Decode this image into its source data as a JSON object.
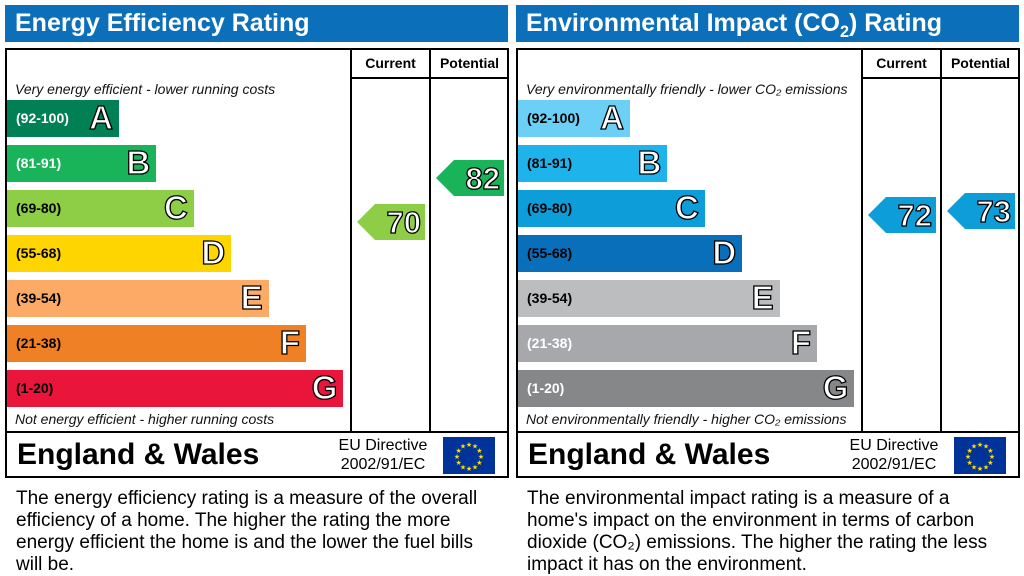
{
  "panels": [
    {
      "title": "Energy Efficiency Rating",
      "title_suffix": "",
      "current_label": "Current",
      "potential_label": "Potential",
      "top_note": "Very energy efficient - lower running costs",
      "bottom_note": "Not energy efficient - higher running costs",
      "region": "England & Wales",
      "directive_line1": "EU Directive",
      "directive_line2": "2002/91/EC",
      "description": "The energy efficiency rating is a measure of the overall efficiency of a home. The higher the rating the more energy efficient the home is and the lower the fuel bills will be."
    },
    {
      "title": "Environmental Impact (CO",
      "title_suffix": ") Rating",
      "current_label": "Current",
      "potential_label": "Potential",
      "top_note": "Very environmentally friendly - lower CO₂ emissions",
      "bottom_note": "Not environmentally friendly - higher CO₂ emissions",
      "region": "England & Wales",
      "directive_line1": "EU Directive",
      "directive_line2": "2002/91/EC",
      "description": "The environmental impact rating is a measure of a home's impact on the environment in terms of carbon dioxide (CO₂) emissions. The higher the rating the less impact it has on the environment."
    }
  ],
  "chart_data": [
    {
      "type": "bar",
      "title": "Energy Efficiency Rating",
      "bands": [
        {
          "letter": "A",
          "range": "(92-100)",
          "color": "#008054",
          "label_color": "#ffffff"
        },
        {
          "letter": "B",
          "range": "(81-91)",
          "color": "#19b459",
          "label_color": "#ffffff"
        },
        {
          "letter": "C",
          "range": "(69-80)",
          "color": "#8dce46",
          "label_color": "#000000"
        },
        {
          "letter": "D",
          "range": "(55-68)",
          "color": "#ffd500",
          "label_color": "#000000"
        },
        {
          "letter": "E",
          "range": "(39-54)",
          "color": "#fcaa65",
          "label_color": "#000000"
        },
        {
          "letter": "F",
          "range": "(21-38)",
          "color": "#ef8023",
          "label_color": "#000000"
        },
        {
          "letter": "G",
          "range": "(1-20)",
          "color": "#e9153b",
          "label_color": "#000000"
        }
      ],
      "current": {
        "value": 70,
        "band": "C",
        "color": "#8dce46"
      },
      "potential": {
        "value": 82,
        "band": "B",
        "color": "#19b459"
      }
    },
    {
      "type": "bar",
      "title": "Environmental Impact (CO2) Rating",
      "bands": [
        {
          "letter": "A",
          "range": "(92-100)",
          "color": "#6ccff6",
          "label_color": "#000000"
        },
        {
          "letter": "B",
          "range": "(81-91)",
          "color": "#1fb3ec",
          "label_color": "#000000"
        },
        {
          "letter": "C",
          "range": "(69-80)",
          "color": "#0d9dd9",
          "label_color": "#000000"
        },
        {
          "letter": "D",
          "range": "(55-68)",
          "color": "#0a6fba",
          "label_color": "#000000"
        },
        {
          "letter": "E",
          "range": "(39-54)",
          "color": "#bbbdbf",
          "label_color": "#000000"
        },
        {
          "letter": "F",
          "range": "(21-38)",
          "color": "#a6a8ab",
          "label_color": "#ffffff"
        },
        {
          "letter": "G",
          "range": "(1-20)",
          "color": "#858789",
          "label_color": "#ffffff"
        }
      ],
      "current": {
        "value": 72,
        "band": "C",
        "color": "#0d9dd9"
      },
      "potential": {
        "value": 73,
        "band": "C",
        "color": "#0d9dd9"
      }
    }
  ]
}
